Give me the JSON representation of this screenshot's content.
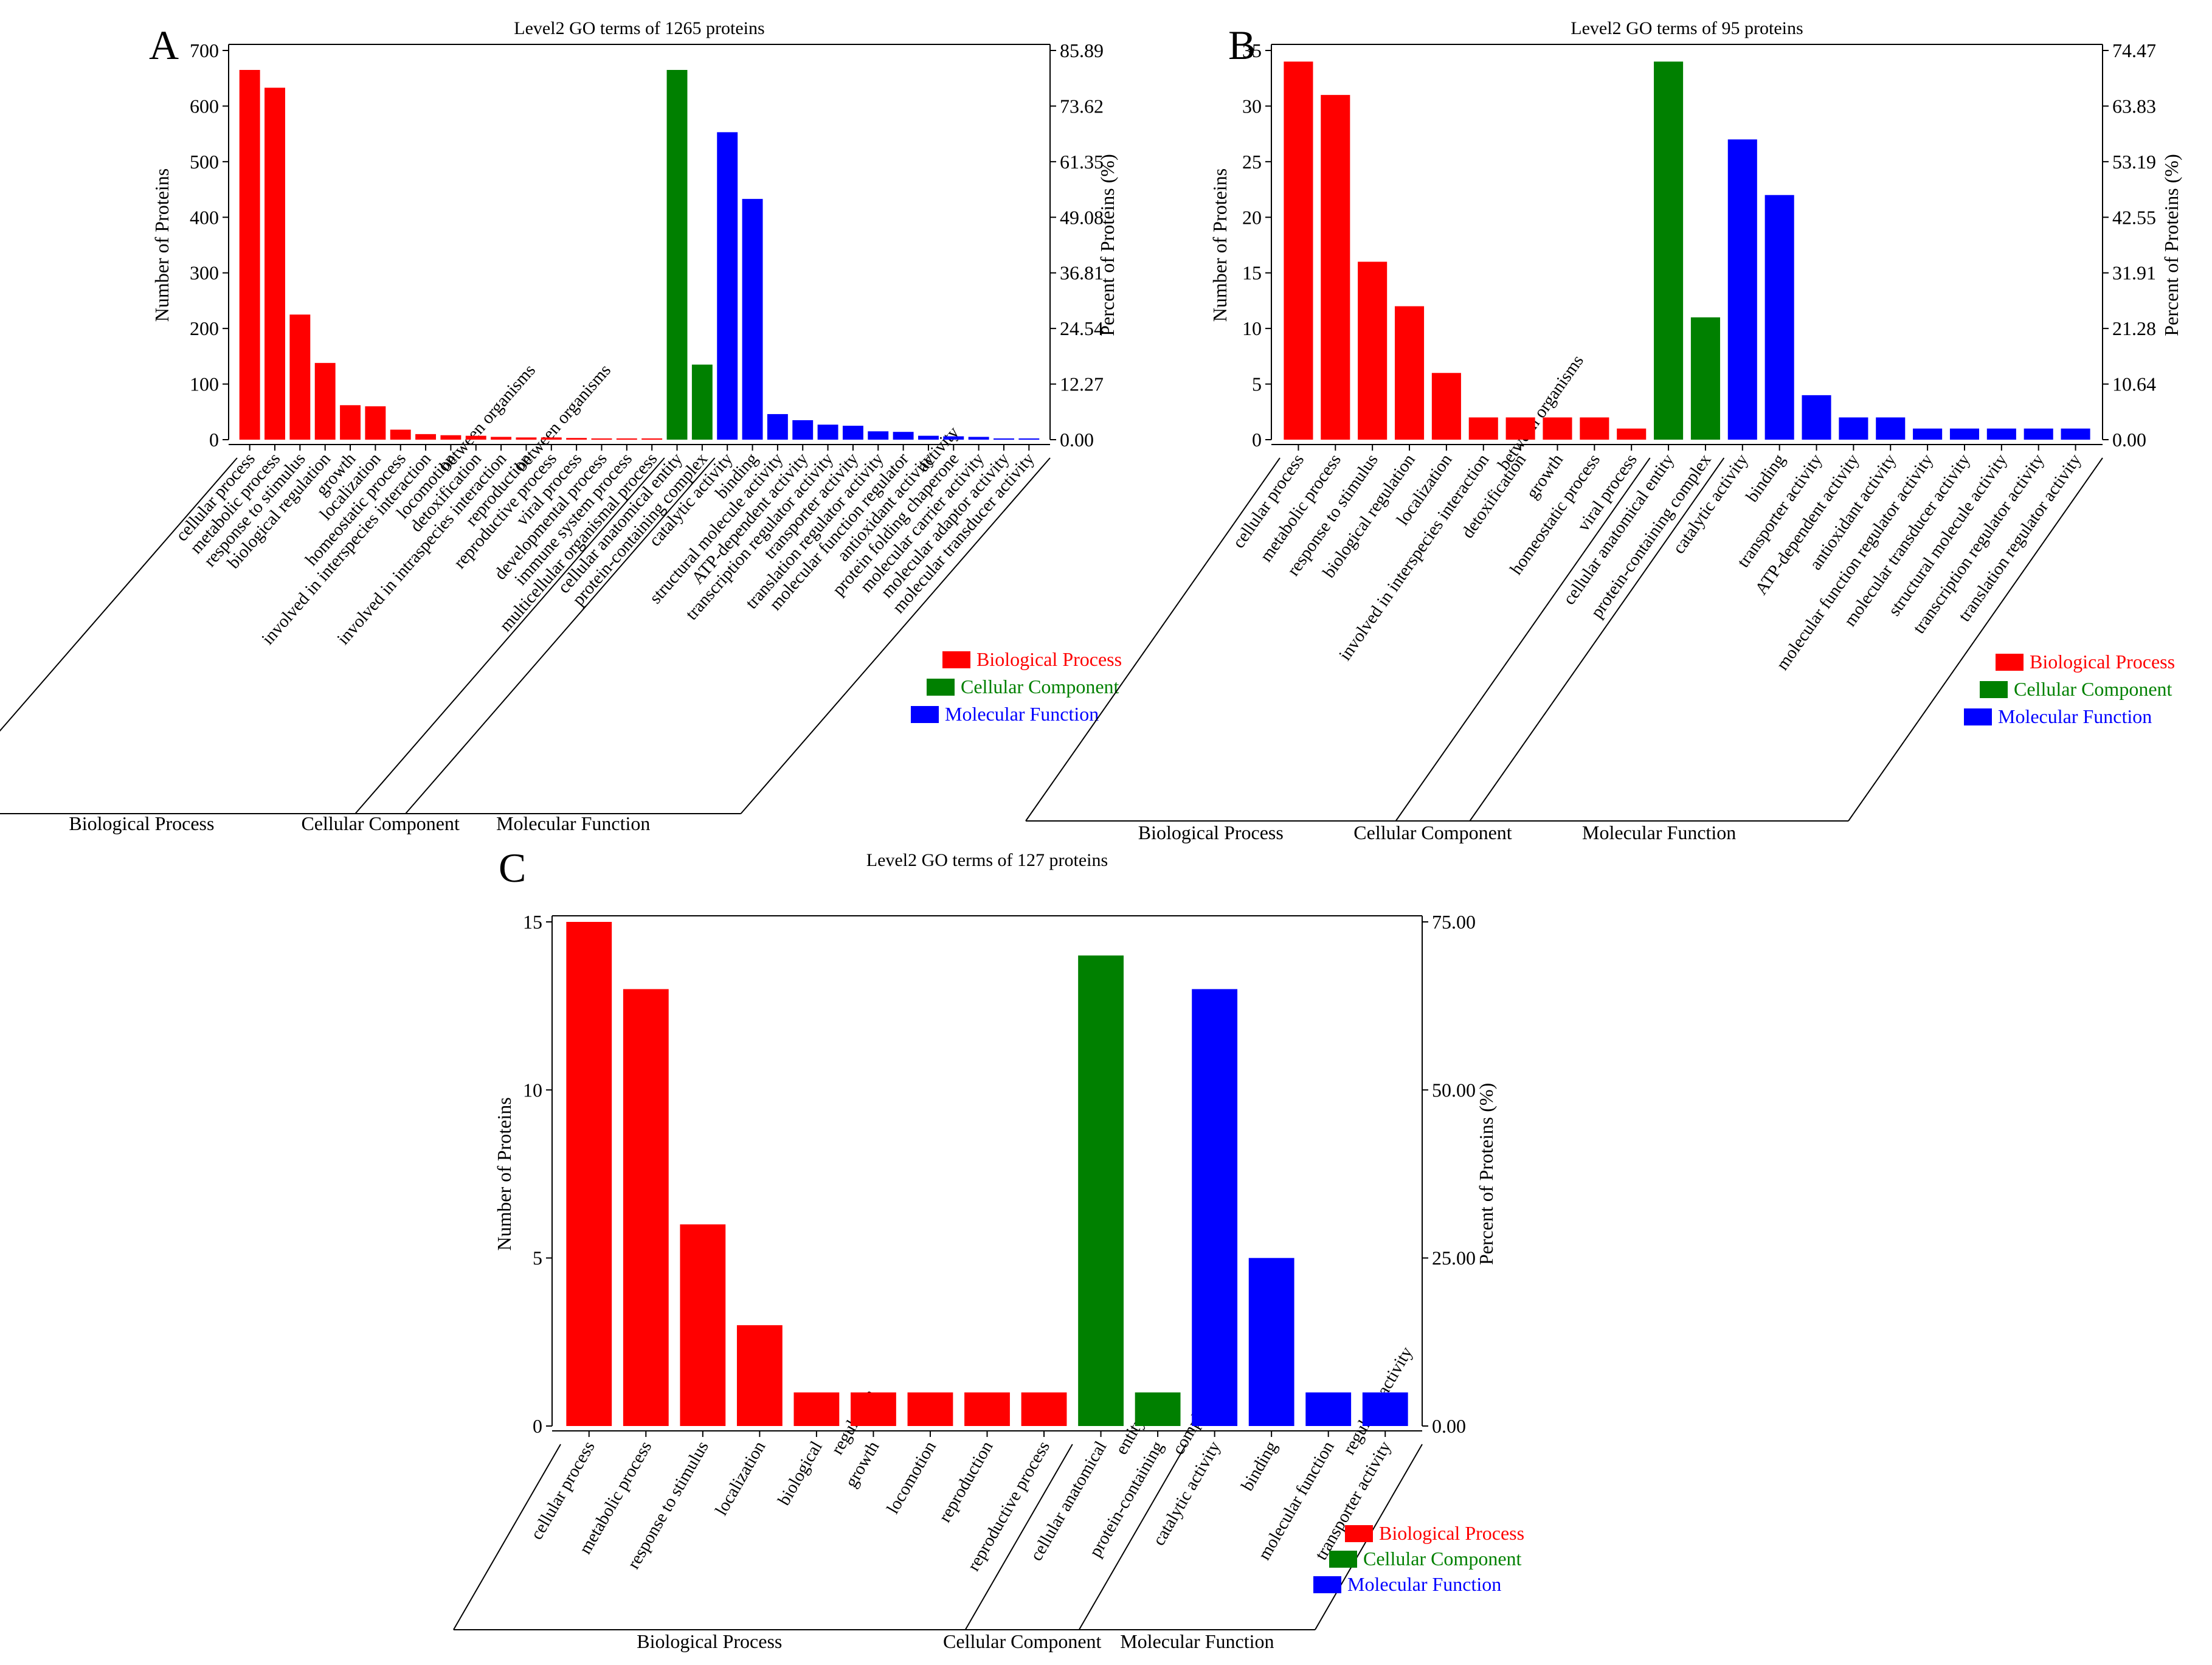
{
  "figure": {
    "colors": {
      "Biological Process": "#ff0000",
      "Cellular Component": "#008000",
      "Molecular Function": "#0000ff"
    }
  },
  "chart_data": [
    {
      "panel": "A",
      "type": "bar",
      "title": "Level2 GO terms of 1265 proteins",
      "ylabel": "Number of Proteins",
      "y2label": "Percent of Proteins (%)",
      "ylim": [
        0,
        700
      ],
      "yticks": [
        0,
        100,
        200,
        300,
        400,
        500,
        600,
        700
      ],
      "y2ticks": [
        "0.00",
        "12.27",
        "24.54",
        "36.81",
        "49.08",
        "61.35",
        "73.62",
        "85.89"
      ],
      "legend": [
        "Biological Process",
        "Cellular Component",
        "Molecular Function"
      ],
      "categories": [
        {
          "label": "cellular process",
          "value": 665,
          "group": "Biological Process"
        },
        {
          "label": "metabolic process",
          "value": 633,
          "group": "Biological Process"
        },
        {
          "label": "response to stimulus",
          "value": 225,
          "group": "Biological Process"
        },
        {
          "label": "biological regulation",
          "value": 138,
          "group": "Biological Process"
        },
        {
          "label": "growth",
          "value": 62,
          "group": "Biological Process"
        },
        {
          "label": "localization",
          "value": 60,
          "group": "Biological Process"
        },
        {
          "label": "homeostatic process",
          "value": 18,
          "group": "Biological Process"
        },
        {
          "label": "involved in interspecies interaction between organisms",
          "value": 10,
          "group": "Biological Process"
        },
        {
          "label": "locomotion",
          "value": 8,
          "group": "Biological Process"
        },
        {
          "label": "detoxification",
          "value": 7,
          "group": "Biological Process"
        },
        {
          "label": "involved in intraspecies interaction between organisms",
          "value": 5,
          "group": "Biological Process"
        },
        {
          "label": "reproduction",
          "value": 4,
          "group": "Biological Process"
        },
        {
          "label": "reproductive process",
          "value": 4,
          "group": "Biological Process"
        },
        {
          "label": "viral process",
          "value": 3,
          "group": "Biological Process"
        },
        {
          "label": "developmental process",
          "value": 2,
          "group": "Biological Process"
        },
        {
          "label": "immune system process",
          "value": 1,
          "group": "Biological Process"
        },
        {
          "label": "multicellular organismal process",
          "value": 1,
          "group": "Biological Process"
        },
        {
          "label": "cellular anatomical entity",
          "value": 665,
          "group": "Cellular Component"
        },
        {
          "label": "protein-containing complex",
          "value": 135,
          "group": "Cellular Component"
        },
        {
          "label": "catalytic activity",
          "value": 553,
          "group": "Molecular Function"
        },
        {
          "label": "binding",
          "value": 433,
          "group": "Molecular Function"
        },
        {
          "label": "structural molecule activity",
          "value": 46,
          "group": "Molecular Function"
        },
        {
          "label": "ATP-dependent activity",
          "value": 35,
          "group": "Molecular Function"
        },
        {
          "label": "transcription regulator activity",
          "value": 27,
          "group": "Molecular Function"
        },
        {
          "label": "transporter activity",
          "value": 25,
          "group": "Molecular Function"
        },
        {
          "label": "translation regulator activity",
          "value": 15,
          "group": "Molecular Function"
        },
        {
          "label": "molecular function regulator activity",
          "value": 14,
          "group": "Molecular Function"
        },
        {
          "label": "antioxidant activity",
          "value": 7,
          "group": "Molecular Function"
        },
        {
          "label": "protein folding chaperone",
          "value": 6,
          "group": "Molecular Function"
        },
        {
          "label": "molecular carrier activity",
          "value": 5,
          "group": "Molecular Function"
        },
        {
          "label": "molecular adaptor activity",
          "value": 2,
          "group": "Molecular Function"
        },
        {
          "label": "molecular transducer activity",
          "value": 1,
          "group": "Molecular Function"
        }
      ]
    },
    {
      "panel": "B",
      "type": "bar",
      "title": "Level2 GO terms of 95 proteins",
      "ylabel": "Number of Proteins",
      "y2label": "Percent of Proteins (%)",
      "ylim": [
        0,
        35
      ],
      "yticks": [
        0,
        5,
        10,
        15,
        20,
        25,
        30,
        35
      ],
      "y2ticks": [
        "0.00",
        "10.64",
        "21.28",
        "31.91",
        "42.55",
        "53.19",
        "63.83",
        "74.47"
      ],
      "legend": [
        "Biological Process",
        "Cellular Component",
        "Molecular Function"
      ],
      "categories": [
        {
          "label": "cellular process",
          "value": 34,
          "group": "Biological Process"
        },
        {
          "label": "metabolic process",
          "value": 31,
          "group": "Biological Process"
        },
        {
          "label": "response to stimulus",
          "value": 16,
          "group": "Biological Process"
        },
        {
          "label": "biological regulation",
          "value": 12,
          "group": "Biological Process"
        },
        {
          "label": "localization",
          "value": 6,
          "group": "Biological Process"
        },
        {
          "label": "involved in interspecies interaction between organisms",
          "value": 2,
          "group": "Biological Process"
        },
        {
          "label": "detoxification",
          "value": 2,
          "group": "Biological Process"
        },
        {
          "label": "growth",
          "value": 2,
          "group": "Biological Process"
        },
        {
          "label": "homeostatic process",
          "value": 2,
          "group": "Biological Process"
        },
        {
          "label": "viral process",
          "value": 1,
          "group": "Biological Process"
        },
        {
          "label": "cellular anatomical entity",
          "value": 34,
          "group": "Cellular Component"
        },
        {
          "label": "protein-containing complex",
          "value": 11,
          "group": "Cellular Component"
        },
        {
          "label": "catalytic activity",
          "value": 27,
          "group": "Molecular Function"
        },
        {
          "label": "binding",
          "value": 22,
          "group": "Molecular Function"
        },
        {
          "label": "transporter activity",
          "value": 4,
          "group": "Molecular Function"
        },
        {
          "label": "ATP-dependent activity",
          "value": 2,
          "group": "Molecular Function"
        },
        {
          "label": "antioxidant activity",
          "value": 2,
          "group": "Molecular Function"
        },
        {
          "label": "molecular function regulator activity",
          "value": 1,
          "group": "Molecular Function"
        },
        {
          "label": "molecular transducer activity",
          "value": 1,
          "group": "Molecular Function"
        },
        {
          "label": "structural molecule activity",
          "value": 1,
          "group": "Molecular Function"
        },
        {
          "label": "transcription regulator activity",
          "value": 1,
          "group": "Molecular Function"
        },
        {
          "label": "translation regulator activity",
          "value": 1,
          "group": "Molecular Function"
        }
      ]
    },
    {
      "panel": "C",
      "type": "bar",
      "title": "Level2 GO terms of 127 proteins",
      "ylabel": "Number of Proteins",
      "y2label": "Percent of Proteins (%)",
      "ylim": [
        0,
        15
      ],
      "yticks": [
        0,
        5,
        10,
        15
      ],
      "y2ticks": [
        "0.00",
        "25.00",
        "50.00",
        "75.00"
      ],
      "legend": [
        "Biological Process",
        "Cellular Component",
        "Molecular Function"
      ],
      "categories": [
        {
          "label": "cellular process",
          "value": 15,
          "group": "Biological Process"
        },
        {
          "label": "metabolic process",
          "value": 13,
          "group": "Biological Process"
        },
        {
          "label": "response to stimulus",
          "value": 6,
          "group": "Biological Process"
        },
        {
          "label": "localization",
          "value": 3,
          "group": "Biological Process"
        },
        {
          "label": "biological regulation",
          "value": 1,
          "group": "Biological Process"
        },
        {
          "label": "growth",
          "value": 1,
          "group": "Biological Process"
        },
        {
          "label": "locomotion",
          "value": 1,
          "group": "Biological Process"
        },
        {
          "label": "reproduction",
          "value": 1,
          "group": "Biological Process"
        },
        {
          "label": "reproductive process",
          "value": 1,
          "group": "Biological Process"
        },
        {
          "label": "cellular anatomical entity",
          "value": 14,
          "group": "Cellular Component"
        },
        {
          "label": "protein-containing complex",
          "value": 1,
          "group": "Cellular Component"
        },
        {
          "label": "catalytic activity",
          "value": 13,
          "group": "Molecular Function"
        },
        {
          "label": "binding",
          "value": 5,
          "group": "Molecular Function"
        },
        {
          "label": "molecular function regulator activity",
          "value": 1,
          "group": "Molecular Function"
        },
        {
          "label": "transporter activity",
          "value": 1,
          "group": "Molecular Function"
        }
      ]
    }
  ]
}
